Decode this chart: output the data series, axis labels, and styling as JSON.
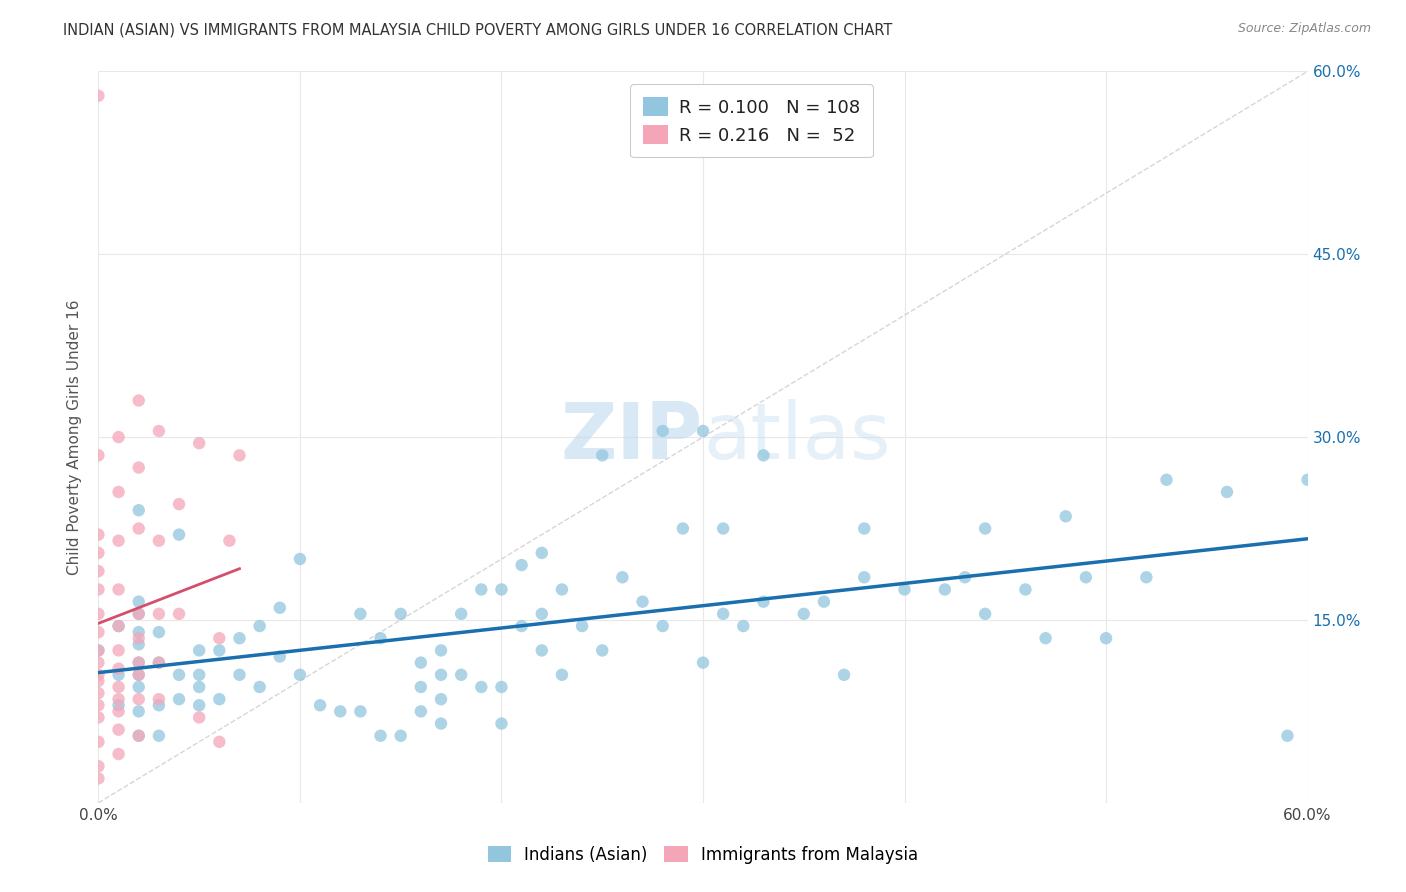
{
  "title": "INDIAN (ASIAN) VS IMMIGRANTS FROM MALAYSIA CHILD POVERTY AMONG GIRLS UNDER 16 CORRELATION CHART",
  "source": "Source: ZipAtlas.com",
  "ylabel": "Child Poverty Among Girls Under 16",
  "xlim": [
    0,
    0.6
  ],
  "ylim": [
    0,
    0.6
  ],
  "blue_color": "#92c5de",
  "pink_color": "#f4a6b8",
  "trend_blue": "#1a6faf",
  "trend_pink": "#d4506a",
  "diag_color": "#cccccc",
  "watermark_color": "#cce4f5",
  "grid_color": "#e8e8e8",
  "background_color": "#ffffff",
  "right_tick_color": "#1a6faf",
  "title_color": "#333333",
  "source_color": "#888888",
  "ylabel_color": "#555555",
  "Indians_x": [
    0.0,
    0.01,
    0.01,
    0.01,
    0.02,
    0.02,
    0.02,
    0.02,
    0.02,
    0.02,
    0.02,
    0.02,
    0.02,
    0.02,
    0.03,
    0.03,
    0.03,
    0.03,
    0.04,
    0.04,
    0.04,
    0.05,
    0.05,
    0.05,
    0.05,
    0.06,
    0.06,
    0.07,
    0.07,
    0.08,
    0.08,
    0.09,
    0.09,
    0.1,
    0.1,
    0.11,
    0.12,
    0.13,
    0.13,
    0.14,
    0.14,
    0.15,
    0.15,
    0.16,
    0.16,
    0.16,
    0.17,
    0.17,
    0.17,
    0.17,
    0.18,
    0.18,
    0.19,
    0.19,
    0.2,
    0.2,
    0.2,
    0.21,
    0.21,
    0.22,
    0.22,
    0.22,
    0.23,
    0.23,
    0.24,
    0.25,
    0.25,
    0.26,
    0.27,
    0.28,
    0.28,
    0.29,
    0.3,
    0.3,
    0.31,
    0.31,
    0.32,
    0.33,
    0.33,
    0.35,
    0.36,
    0.37,
    0.38,
    0.38,
    0.4,
    0.42,
    0.43,
    0.44,
    0.44,
    0.46,
    0.47,
    0.48,
    0.49,
    0.5,
    0.52,
    0.53,
    0.56,
    0.59,
    0.6
  ],
  "Indians_y": [
    0.125,
    0.08,
    0.105,
    0.145,
    0.055,
    0.075,
    0.095,
    0.105,
    0.115,
    0.13,
    0.14,
    0.155,
    0.165,
    0.24,
    0.055,
    0.08,
    0.115,
    0.14,
    0.085,
    0.105,
    0.22,
    0.08,
    0.095,
    0.105,
    0.125,
    0.085,
    0.125,
    0.105,
    0.135,
    0.095,
    0.145,
    0.12,
    0.16,
    0.105,
    0.2,
    0.08,
    0.075,
    0.075,
    0.155,
    0.055,
    0.135,
    0.055,
    0.155,
    0.075,
    0.095,
    0.115,
    0.065,
    0.085,
    0.105,
    0.125,
    0.105,
    0.155,
    0.095,
    0.175,
    0.065,
    0.095,
    0.175,
    0.145,
    0.195,
    0.125,
    0.155,
    0.205,
    0.105,
    0.175,
    0.145,
    0.125,
    0.285,
    0.185,
    0.165,
    0.145,
    0.305,
    0.225,
    0.115,
    0.305,
    0.155,
    0.225,
    0.145,
    0.165,
    0.285,
    0.155,
    0.165,
    0.105,
    0.185,
    0.225,
    0.175,
    0.175,
    0.185,
    0.225,
    0.155,
    0.175,
    0.135,
    0.235,
    0.185,
    0.135,
    0.185,
    0.265,
    0.255,
    0.055,
    0.265
  ],
  "Malaysia_x": [
    0.0,
    0.0,
    0.0,
    0.0,
    0.0,
    0.0,
    0.0,
    0.0,
    0.0,
    0.0,
    0.0,
    0.0,
    0.0,
    0.0,
    0.0,
    0.0,
    0.0,
    0.0,
    0.01,
    0.01,
    0.01,
    0.01,
    0.01,
    0.01,
    0.01,
    0.01,
    0.01,
    0.01,
    0.01,
    0.01,
    0.02,
    0.02,
    0.02,
    0.02,
    0.02,
    0.02,
    0.02,
    0.02,
    0.02,
    0.03,
    0.03,
    0.03,
    0.03,
    0.03,
    0.04,
    0.04,
    0.05,
    0.05,
    0.06,
    0.06,
    0.065,
    0.07
  ],
  "Malaysia_y": [
    0.02,
    0.03,
    0.05,
    0.07,
    0.08,
    0.09,
    0.1,
    0.105,
    0.115,
    0.125,
    0.14,
    0.155,
    0.175,
    0.19,
    0.205,
    0.22,
    0.285,
    0.58,
    0.04,
    0.06,
    0.075,
    0.085,
    0.095,
    0.11,
    0.125,
    0.145,
    0.175,
    0.215,
    0.255,
    0.3,
    0.055,
    0.085,
    0.105,
    0.115,
    0.135,
    0.155,
    0.225,
    0.275,
    0.33,
    0.085,
    0.115,
    0.155,
    0.215,
    0.305,
    0.155,
    0.245,
    0.07,
    0.295,
    0.05,
    0.135,
    0.215,
    0.285
  ]
}
